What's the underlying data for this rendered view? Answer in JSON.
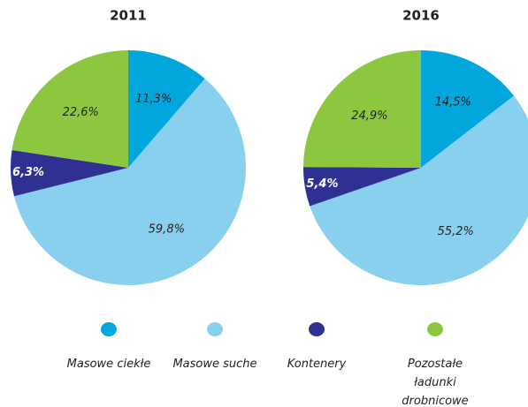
{
  "chart_data": [
    {
      "type": "pie",
      "title": "2011",
      "categories": [
        "Masowe ciekłe",
        "Masowe suche",
        "Kontenery",
        "Pozostałe ładunki drobnicowe"
      ],
      "values": [
        11.3,
        59.8,
        6.3,
        22.6
      ],
      "value_labels": [
        "11,3%",
        "59,8%",
        "6,3%",
        "22,6%"
      ],
      "colors": [
        "#00a6dc",
        "#88d0ee",
        "#2e3192",
        "#8dc63f"
      ]
    },
    {
      "type": "pie",
      "title": "2016",
      "categories": [
        "Masowe ciekłe",
        "Masowe suche",
        "Kontenery",
        "Pozostałe ładunki drobnicowe"
      ],
      "values": [
        14.5,
        55.2,
        5.4,
        24.9
      ],
      "value_labels": [
        "14,5%",
        "55,2%",
        "5,4%",
        "24,9%"
      ],
      "colors": [
        "#00a6dc",
        "#88d0ee",
        "#2e3192",
        "#8dc63f"
      ]
    }
  ]
}
